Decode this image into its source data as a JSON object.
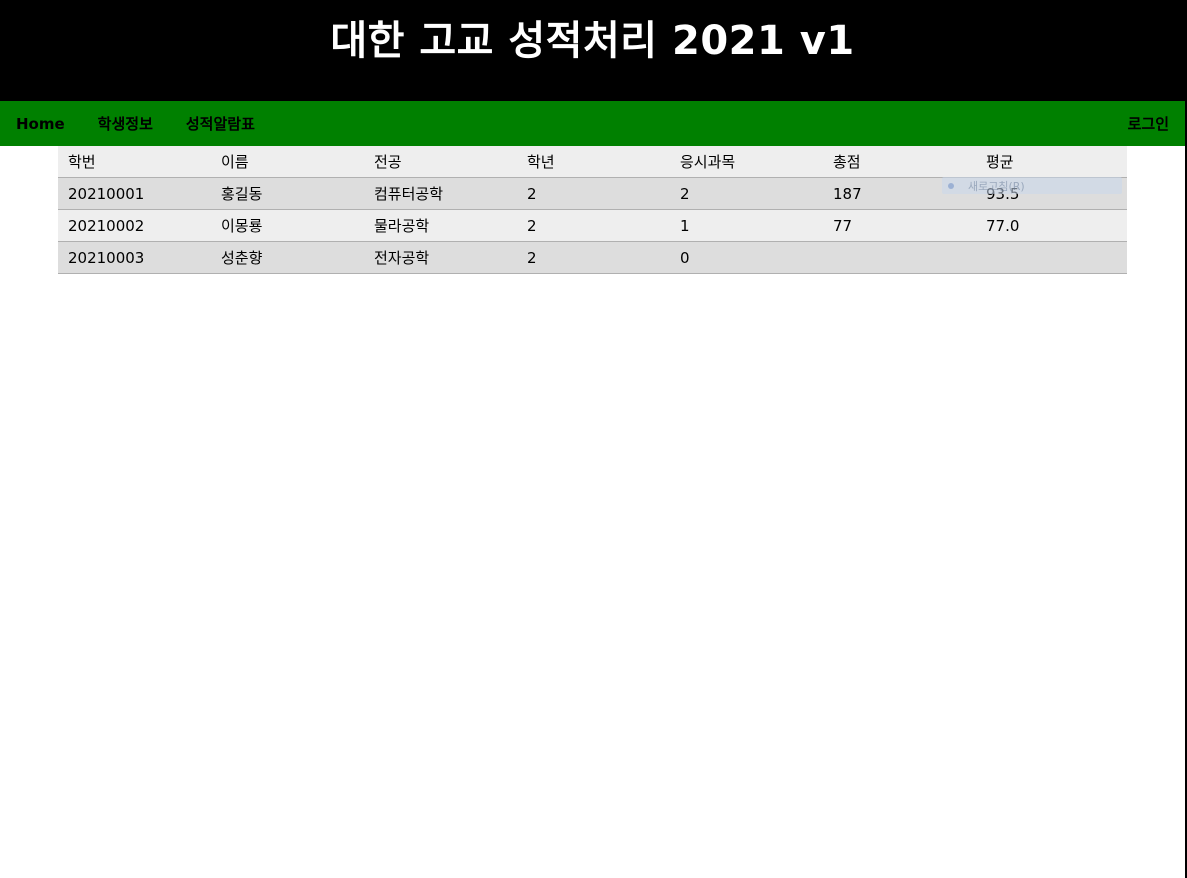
{
  "header": {
    "title": "대한 고교 성적처리 2021 v1"
  },
  "nav": {
    "items": [
      {
        "label": "Home"
      },
      {
        "label": "학생정보"
      },
      {
        "label": "성적알람표"
      }
    ],
    "login_label": "로그인"
  },
  "table": {
    "columns": [
      "학번",
      "이름",
      "전공",
      "학년",
      "응시과목",
      "총점",
      "평균"
    ],
    "rows": [
      [
        "20210001",
        "홍길동",
        "컴퓨터공학",
        "2",
        "2",
        "187",
        "93.5"
      ],
      [
        "20210002",
        "이몽룡",
        "물라공학",
        "2",
        "1",
        "77",
        "77.0"
      ],
      [
        "20210003",
        "성춘향",
        "전자공학",
        "2",
        "0",
        "",
        ""
      ]
    ]
  },
  "overlay": {
    "ghost_text": "새로고침(R)"
  },
  "colors": {
    "header_bg": "#000000",
    "nav_bg": "#008000",
    "row_light": "#eeeeee",
    "row_dark": "#dddddd"
  }
}
